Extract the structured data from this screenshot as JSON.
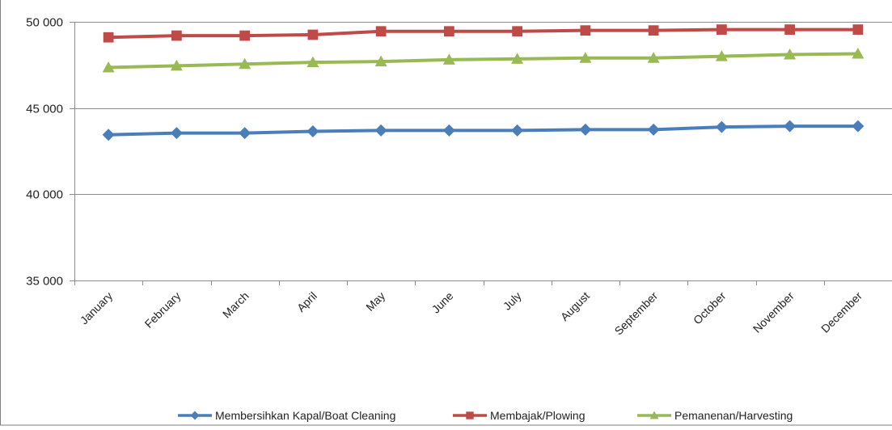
{
  "chart_data": {
    "type": "line",
    "categories": [
      "January",
      "February",
      "March",
      "April",
      "May",
      "June",
      "July",
      "August",
      "September",
      "October",
      "November",
      "December"
    ],
    "ylim": [
      35000,
      50000
    ],
    "yticks": [
      35000,
      40000,
      45000,
      50000
    ],
    "ytick_labels": [
      "35 000",
      "40 000",
      "45 000",
      "50 000"
    ],
    "grid": true,
    "legend_position": "bottom",
    "series": [
      {
        "name": "Membersihkan Kapal/Boat Cleaning",
        "color": "#4a7ebb",
        "marker": "diamond",
        "values": [
          43450,
          43550,
          43550,
          43650,
          43700,
          43700,
          43700,
          43750,
          43750,
          43900,
          43950,
          43950
        ]
      },
      {
        "name": "Membajak/Plowing",
        "color": "#be4b48",
        "marker": "square",
        "values": [
          49100,
          49200,
          49200,
          49250,
          49450,
          49450,
          49450,
          49500,
          49500,
          49550,
          49550,
          49550
        ]
      },
      {
        "name": "Pemanenan/Harvesting",
        "color": "#98b954",
        "marker": "triangle",
        "values": [
          47350,
          47450,
          47550,
          47650,
          47700,
          47800,
          47850,
          47900,
          47900,
          48000,
          48100,
          48150
        ]
      }
    ]
  }
}
